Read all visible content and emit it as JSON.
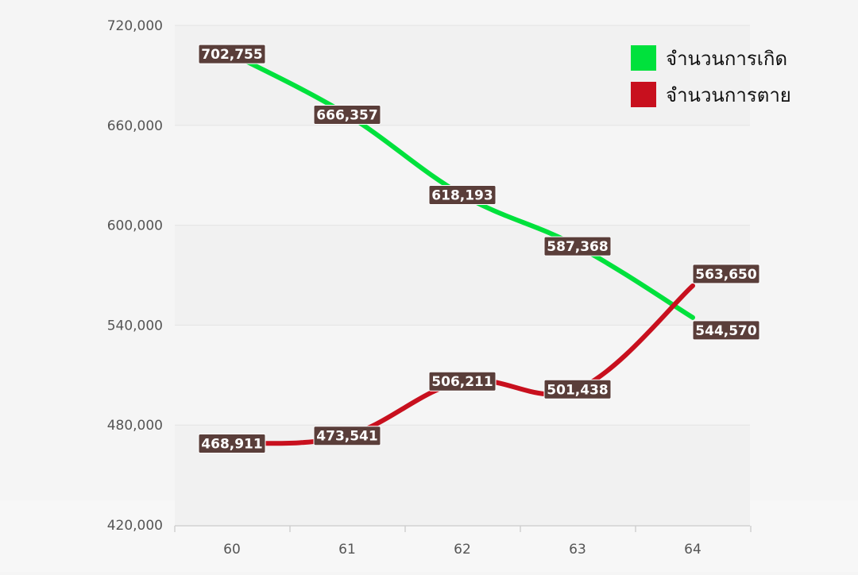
{
  "chart_data": {
    "type": "line",
    "title": "",
    "xlabel": "",
    "ylabel": "",
    "categories": [
      "60",
      "61",
      "62",
      "63",
      "64"
    ],
    "ylim": [
      420000,
      720000
    ],
    "yticks": [
      420000,
      480000,
      540000,
      600000,
      660000,
      720000
    ],
    "ytick_labels": [
      "420,000",
      "480,000",
      "540,000",
      "600,000",
      "660,000",
      "720,000"
    ],
    "grid": true,
    "legend_position": "top-right",
    "series": [
      {
        "name": "จำนวนการเกิด",
        "color": "#00e13c",
        "values": [
          702755,
          666357,
          618193,
          587368,
          544570
        ],
        "labels": [
          "702,755",
          "666,357",
          "618,193",
          "587,368",
          "544,570"
        ]
      },
      {
        "name": "จำนวนการตาย",
        "color": "#c8101e",
        "values": [
          468911,
          473541,
          506211,
          501438,
          563650
        ],
        "labels": [
          "468,911",
          "473,541",
          "506,211",
          "501,438",
          "563,650"
        ]
      }
    ],
    "label_box_color": "#5a3e3a"
  }
}
